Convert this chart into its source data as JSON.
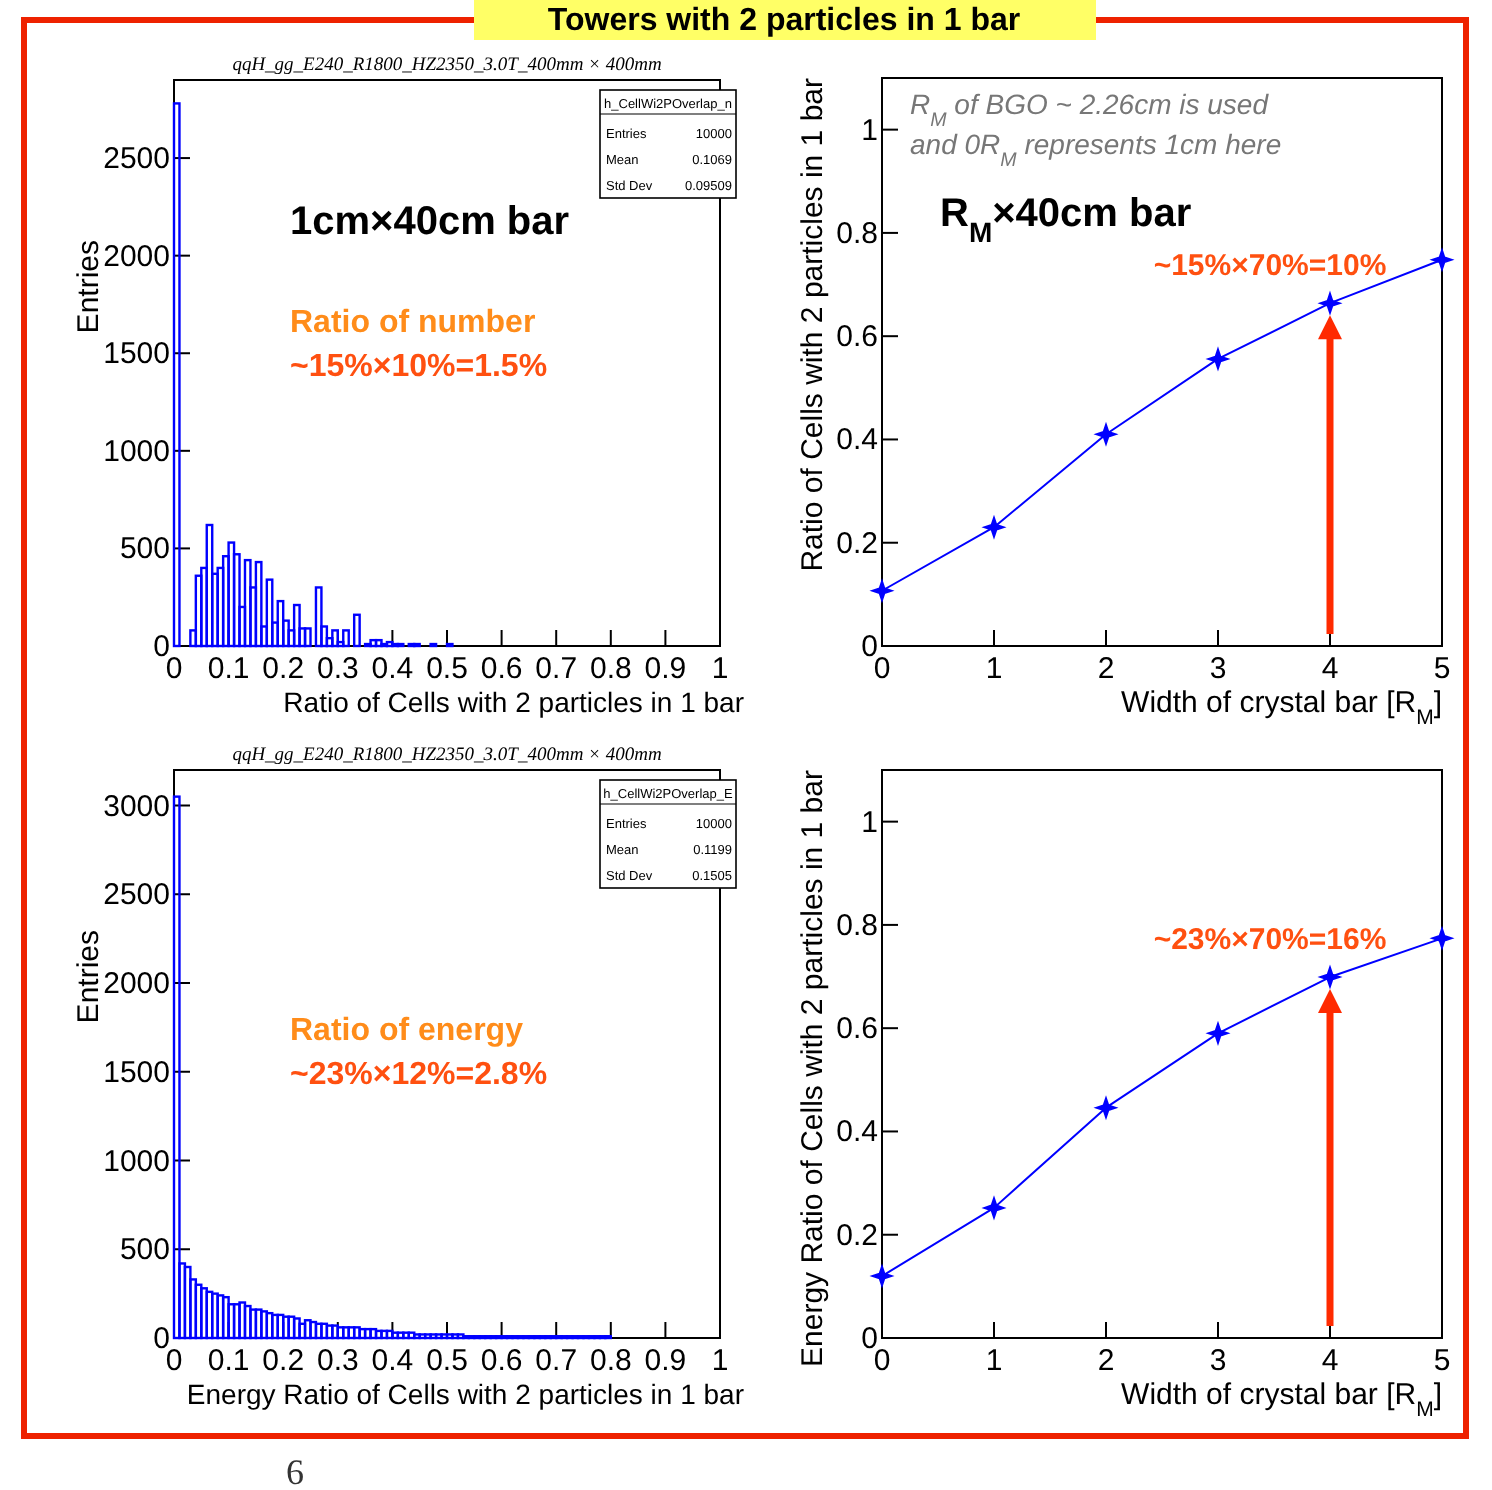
{
  "chart_data": [
    {
      "type": "histogram",
      "title": "qqH_gg_E240_R1800_HZ2350_3.0T_400mm × 400mm",
      "xlabel": "Ratio of Cells with 2 particles in 1 bar",
      "ylabel": "Entries",
      "bins": [
        0,
        0.01,
        0.02,
        0.03,
        0.04,
        0.05,
        0.06,
        0.07,
        0.08,
        0.09,
        0.1,
        0.11,
        0.12,
        0.13,
        0.14,
        0.15,
        0.16,
        0.17,
        0.18,
        0.19,
        0.2,
        0.21,
        0.22,
        0.23,
        0.24,
        0.25,
        0.26,
        0.27,
        0.28,
        0.29,
        0.3,
        0.31,
        0.32,
        0.33,
        0.34,
        0.35,
        0.36,
        0.37,
        0.38,
        0.39,
        0.4,
        0.41,
        0.42,
        0.43,
        0.44,
        0.45,
        0.46,
        0.47,
        0.48,
        0.49,
        0.5,
        0.51,
        0.52,
        0.53,
        0.54,
        0.55,
        0.56,
        0.57,
        0.58,
        0.59,
        0.6,
        0.61,
        0.62,
        0.63,
        0.64,
        0.65,
        0.66,
        0.67,
        0.68,
        0.69,
        0.7,
        0.71,
        0.72,
        0.73,
        0.74,
        0.75,
        0.76,
        0.77,
        0.78,
        0.79,
        0.8,
        0.81,
        0.82,
        0.83,
        0.84,
        0.85,
        0.86,
        0.87,
        0.88,
        0.89,
        0.9,
        0.91,
        0.92,
        0.93,
        0.94,
        0.95,
        0.96,
        0.97,
        0.98,
        0.99,
        1
      ],
      "values": [
        2780,
        0,
        0,
        80,
        360,
        400,
        620,
        370,
        400,
        460,
        530,
        470,
        200,
        440,
        300,
        430,
        100,
        340,
        120,
        230,
        130,
        80,
        210,
        90,
        90,
        0,
        300,
        100,
        40,
        80,
        20,
        80,
        0,
        160,
        0,
        10,
        30,
        30,
        10,
        20,
        10,
        10,
        0,
        10,
        10,
        0,
        0,
        10,
        0,
        0,
        10,
        0,
        0,
        0,
        0,
        0,
        0,
        0,
        0,
        0,
        0,
        0,
        0,
        0,
        0,
        0,
        0,
        0,
        0,
        0,
        0,
        0,
        0,
        0,
        0,
        0,
        0,
        0,
        0,
        0,
        0,
        0,
        0,
        0,
        0,
        0,
        0,
        0,
        0,
        0,
        0,
        0,
        0,
        0,
        0,
        0,
        0,
        0,
        0,
        0
      ],
      "color": "#0000ff",
      "xlim": [
        0,
        1
      ],
      "ylim": [
        0,
        2900
      ],
      "xticks": [
        0,
        0.1,
        0.2,
        0.3,
        0.4,
        0.5,
        0.6,
        0.7,
        0.8,
        0.9,
        1
      ],
      "yticks": [
        0,
        500,
        1000,
        1500,
        2000,
        2500
      ],
      "annotations": [
        "h_CellWi2POverlap_n",
        "Entries",
        "10000",
        "Mean",
        "0.1069",
        "Std Dev",
        "0.09509",
        "1cm×40cm bar",
        "Ratio of number",
        "~15%×10%=1.5%",
        "Towers with 2 particles in 1 bar"
      ]
    },
    {
      "type": "line",
      "xlabel": "Width of crystal bar [R$_{M}$]",
      "ylabel": "Ratio of Cells with 2 particles in 1 bar",
      "x": [
        0,
        1,
        2,
        3,
        4,
        5
      ],
      "series": [
        {
          "color": "#0000ff",
          "values": [
            0.107,
            0.23,
            0.41,
            0.556,
            0.664,
            0.748
          ]
        }
      ],
      "marker": "star",
      "line_style": "solid",
      "xlim": [
        0,
        5
      ],
      "ylim": [
        0,
        1.1
      ],
      "xticks": [
        0,
        1,
        2,
        3,
        4,
        5
      ],
      "yticks": [
        0,
        0.2,
        0.4,
        0.6,
        0.8,
        1
      ],
      "annotations": [
        "R$_{M}$ of BGO ~ 2.26cm is used",
        "and 0R$_{M}$ represents 1cm here",
        "R$_{M}$×40cm bar",
        {
          "text": "~15%×70%=10%",
          "x": 4,
          "y": 0.664
        }
      ]
    },
    {
      "type": "histogram",
      "title": "qqH_gg_E240_R1800_HZ2350_3.0T_400mm × 400mm",
      "xlabel": "Energy Ratio of Cells with 2 particles in 1 bar",
      "ylabel": "Entries",
      "bins": [
        0,
        0.01,
        0.02,
        0.03,
        0.04,
        0.05,
        0.06,
        0.07,
        0.08,
        0.09,
        0.1,
        0.11,
        0.12,
        0.13,
        0.14,
        0.15,
        0.16,
        0.17,
        0.18,
        0.19,
        0.2,
        0.21,
        0.22,
        0.23,
        0.24,
        0.25,
        0.26,
        0.27,
        0.28,
        0.29,
        0.3,
        0.31,
        0.32,
        0.33,
        0.34,
        0.35,
        0.36,
        0.37,
        0.38,
        0.39,
        0.4,
        0.41,
        0.42,
        0.43,
        0.44,
        0.45,
        0.46,
        0.47,
        0.48,
        0.49,
        0.5,
        0.51,
        0.52,
        0.53,
        0.54,
        0.55,
        0.56,
        0.57,
        0.58,
        0.59,
        0.6,
        0.61,
        0.62,
        0.63,
        0.64,
        0.65,
        0.66,
        0.67,
        0.68,
        0.69,
        0.7,
        0.71,
        0.72,
        0.73,
        0.74,
        0.75,
        0.76,
        0.77,
        0.78,
        0.79,
        0.8,
        0.81,
        0.82,
        0.83,
        0.84,
        0.85,
        0.86,
        0.87,
        0.88,
        0.89,
        0.9,
        0.91,
        0.92,
        0.93,
        0.94,
        0.95,
        0.96,
        0.97,
        0.98,
        0.99,
        1
      ],
      "values": [
        3050,
        420,
        400,
        330,
        300,
        280,
        260,
        250,
        240,
        230,
        190,
        190,
        200,
        180,
        160,
        160,
        150,
        140,
        130,
        130,
        120,
        120,
        110,
        80,
        100,
        90,
        80,
        80,
        70,
        70,
        60,
        60,
        60,
        60,
        50,
        50,
        50,
        40,
        40,
        40,
        30,
        30,
        30,
        30,
        20,
        20,
        20,
        20,
        20,
        20,
        20,
        20,
        20,
        10,
        10,
        10,
        10,
        10,
        10,
        10,
        10,
        10,
        10,
        10,
        10,
        10,
        10,
        10,
        10,
        10,
        10,
        10,
        10,
        10,
        10,
        10,
        10,
        10,
        10,
        10,
        0,
        0,
        0,
        0,
        0,
        0,
        0,
        0,
        0,
        0,
        0,
        0,
        0,
        0,
        0,
        0,
        0,
        0,
        0,
        0
      ],
      "color": "#0000ff",
      "xlim": [
        0,
        1
      ],
      "ylim": [
        0,
        3200
      ],
      "xticks": [
        0,
        0.1,
        0.2,
        0.3,
        0.4,
        0.5,
        0.6,
        0.7,
        0.8,
        0.9,
        1
      ],
      "yticks": [
        0,
        500,
        1000,
        1500,
        2000,
        2500,
        3000
      ],
      "annotations": [
        "h_CellWi2POverlap_E",
        "Entries",
        "10000",
        "Mean",
        "0.1199",
        "Std Dev",
        "0.1505",
        "Ratio of energy",
        "~23%×12%=2.8%",
        "6"
      ]
    },
    {
      "type": "line",
      "xlabel": "Width of crystal bar [R$_{M}$]",
      "ylabel": "Energy Ratio of Cells with 2 particles in 1 bar",
      "x": [
        0,
        1,
        2,
        3,
        4,
        5
      ],
      "series": [
        {
          "color": "#0000ff",
          "values": [
            0.12,
            0.252,
            0.446,
            0.59,
            0.699,
            0.774
          ]
        }
      ],
      "marker": "star",
      "line_style": "solid",
      "xlim": [
        0,
        5
      ],
      "ylim": [
        0,
        1.1
      ],
      "xticks": [
        0,
        1,
        2,
        3,
        4,
        5
      ],
      "yticks": [
        0,
        0.2,
        0.4,
        0.6,
        0.8,
        1
      ],
      "annotations": [
        {
          "text": "~23%×70%=16%",
          "x": 4,
          "y": 0.699
        }
      ]
    }
  ]
}
